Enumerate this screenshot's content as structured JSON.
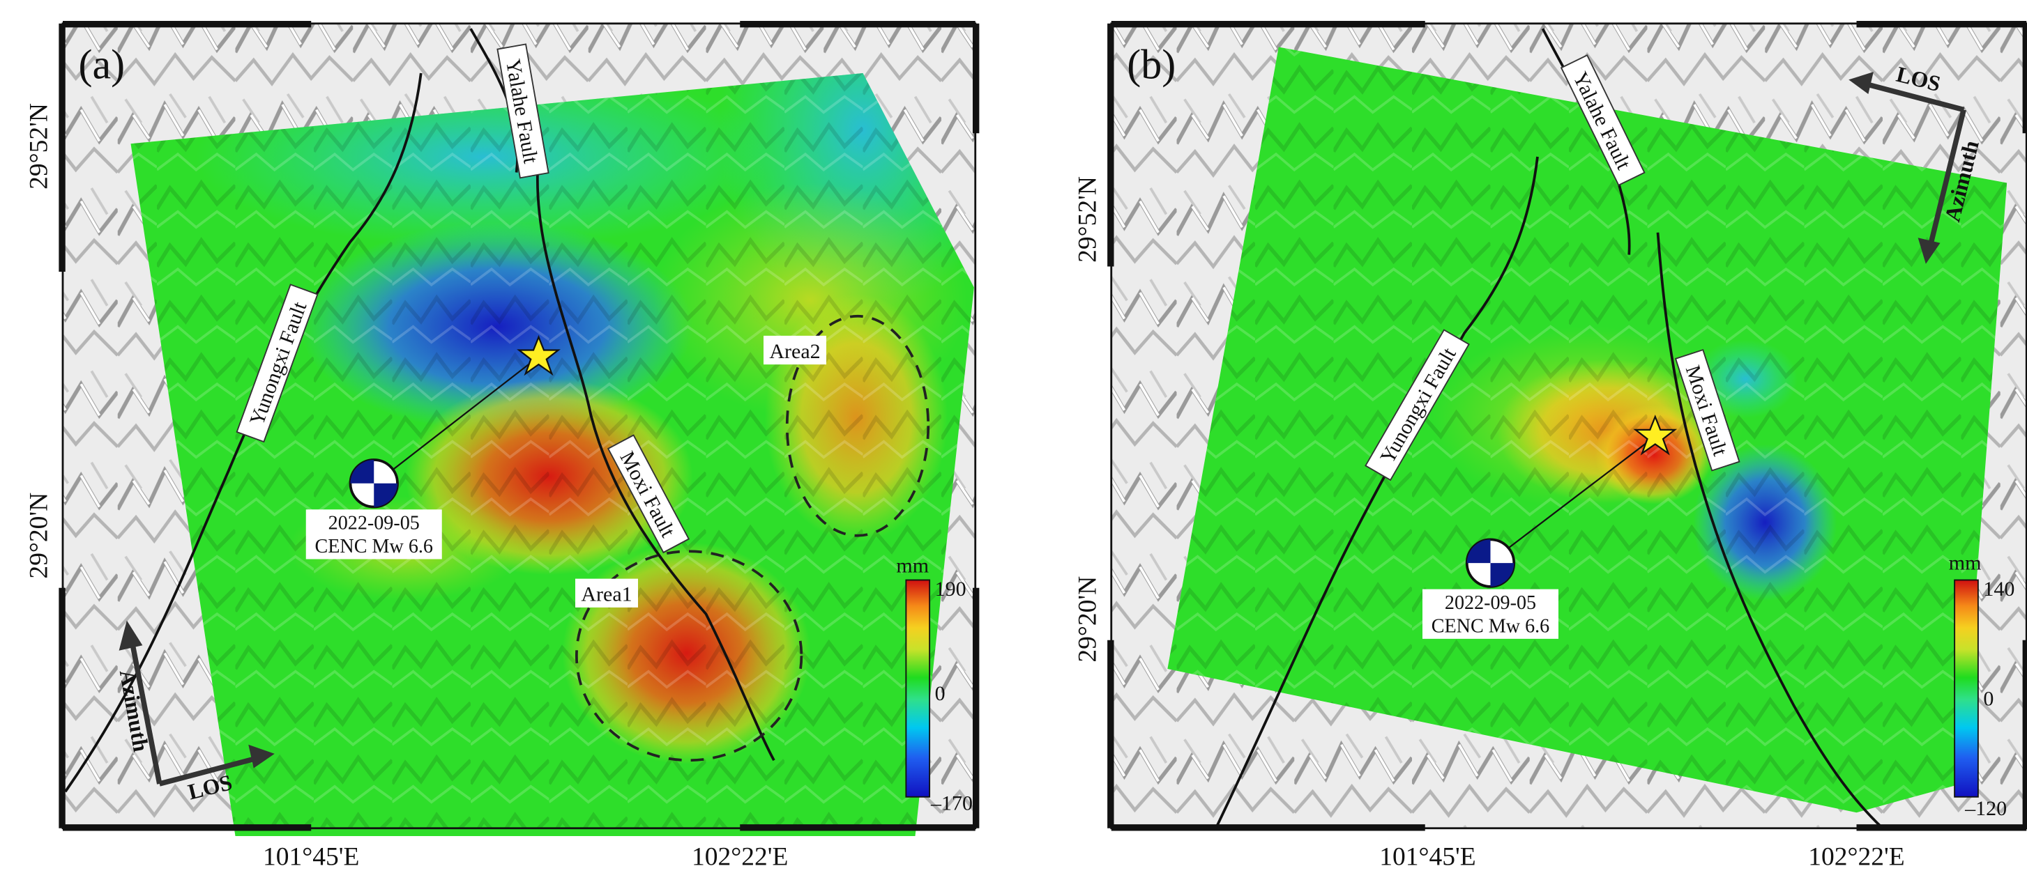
{
  "panels": [
    {
      "id": "a",
      "label": "(a)",
      "lat_labels": [
        "29°52'N",
        "29°20'N"
      ],
      "lon_labels": [
        "101°45'E",
        "102°22'E"
      ],
      "faults": [
        "Yalahe Fault",
        "Yunongxi Fault",
        "Moxi Fault"
      ],
      "areas": [
        "Area2",
        "Area1"
      ],
      "event": {
        "date": "2022-09-05",
        "source": "CENC Mw 6.6"
      },
      "colorbar": {
        "unit": "mm",
        "max": "190",
        "mid": "0",
        "min": "–170"
      },
      "azimuth_label": "Azimuth",
      "los_label": "LOS",
      "colors": {
        "ramp": [
          "#1010c0",
          "#1f5ef0",
          "#00c8f0",
          "#2fe08a",
          "#1fdc1f",
          "#c8e22a",
          "#f5d020",
          "#f58a18",
          "#e61e12",
          "#c40c0c"
        ]
      }
    },
    {
      "id": "b",
      "label": "(b)",
      "lat_labels": [
        "29°52'N",
        "29°20'N"
      ],
      "lon_labels": [
        "101°45'E",
        "102°22'E"
      ],
      "faults": [
        "Yalahe Fault",
        "Yunongxi Fault",
        "Moxi Fault"
      ],
      "event": {
        "date": "2022-09-05",
        "source": "CENC Mw 6.6"
      },
      "colorbar": {
        "unit": "mm",
        "max": "140",
        "mid": "0",
        "min": "–120"
      },
      "azimuth_label": "Azimuth",
      "los_label": "LOS"
    }
  ]
}
